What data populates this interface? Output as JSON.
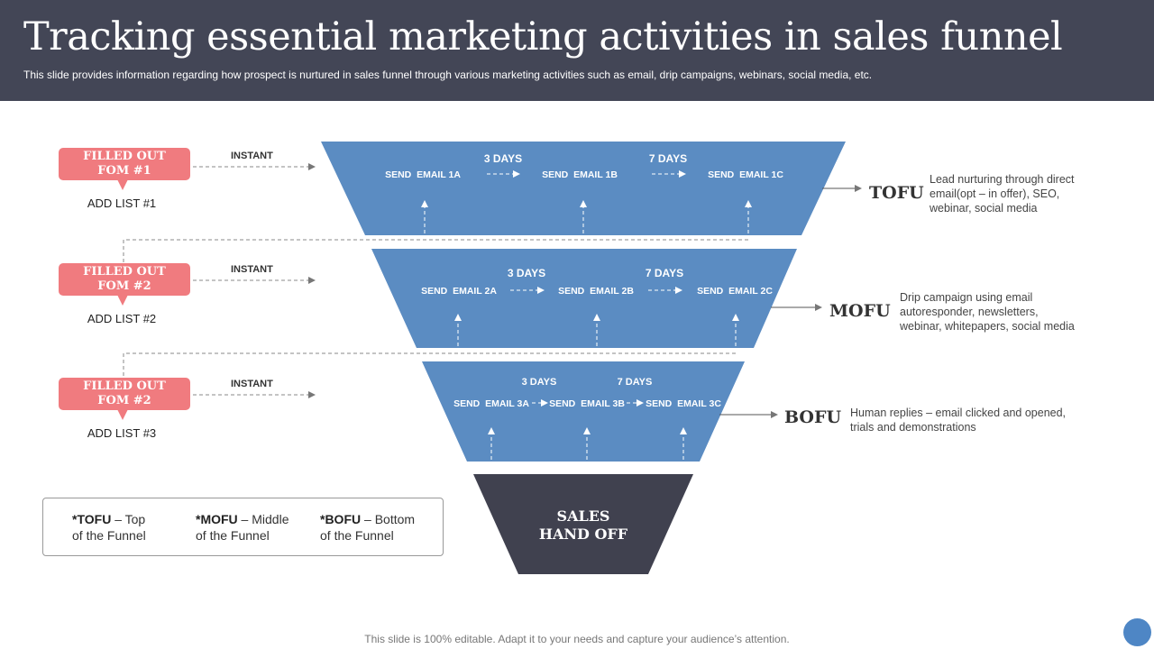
{
  "header": {
    "title": "Tracking essential marketing activities in sales funnel",
    "subtitle": "This slide provides information regarding how prospect is nurtured in sales funnel through various marketing activities such as email, drip campaigns, webinars, social media, etc."
  },
  "forms": [
    {
      "label_line1": "FILLED OUT",
      "label_line2": "FOM #1",
      "list": "ADD LIST #1",
      "trigger": "INSTANT"
    },
    {
      "label_line1": "FILLED OUT",
      "label_line2": "FOM #2",
      "list": "ADD LIST #2",
      "trigger": "INSTANT"
    },
    {
      "label_line1": "FILLED OUT",
      "label_line2": "FOM #2",
      "list": "ADD LIST #3",
      "trigger": "INSTANT"
    }
  ],
  "funnel": [
    {
      "stage": "TOFU",
      "emails": [
        "SEND  EMAIL 1A",
        "SEND  EMAIL 1B",
        "SEND  EMAIL 1C"
      ],
      "delays": [
        "3 DAYS",
        "7 DAYS"
      ],
      "description": [
        "Lead nurturing through direct",
        "email(opt – in offer),  SEO,",
        "webinar,  social media"
      ]
    },
    {
      "stage": "MOFU",
      "emails": [
        "SEND  EMAIL 2A",
        "SEND  EMAIL 2B",
        "SEND  EMAIL 2C"
      ],
      "delays": [
        "3 DAYS",
        "7 DAYS"
      ],
      "description": [
        "Drip campaign using email",
        "autoresponder,  newsletters,",
        "webinar,  whitepapers,  social media"
      ]
    },
    {
      "stage": "BOFU",
      "emails": [
        "SEND  EMAIL 3A",
        "SEND  EMAIL 3B",
        "SEND  EMAIL 3C"
      ],
      "delays": [
        "3 DAYS",
        "7 DAYS"
      ],
      "description": [
        "Human replies – email clicked and opened,",
        "trials and demonstrations"
      ]
    }
  ],
  "handoff": {
    "line1": "SALES",
    "line2": "HAND OFF"
  },
  "legend": [
    {
      "abbr": "*TOFU",
      "rest": " – Top",
      "line2": "of the Funnel"
    },
    {
      "abbr": "*MOFU",
      "rest": " – Middle",
      "line2": "of the Funnel"
    },
    {
      "abbr": "*BOFU",
      "rest": " – Bottom",
      "line2": "of the Funnel"
    }
  ],
  "footer": "This slide is 100% editable. Adapt it to your needs and capture your audience’s attention.",
  "colors": {
    "header_bg": "#434656",
    "funnel_blue": "#5b8cc2",
    "handoff_dark": "#40414f",
    "form_pink": "#f07b7f",
    "accent_dot": "#4e86c5"
  }
}
